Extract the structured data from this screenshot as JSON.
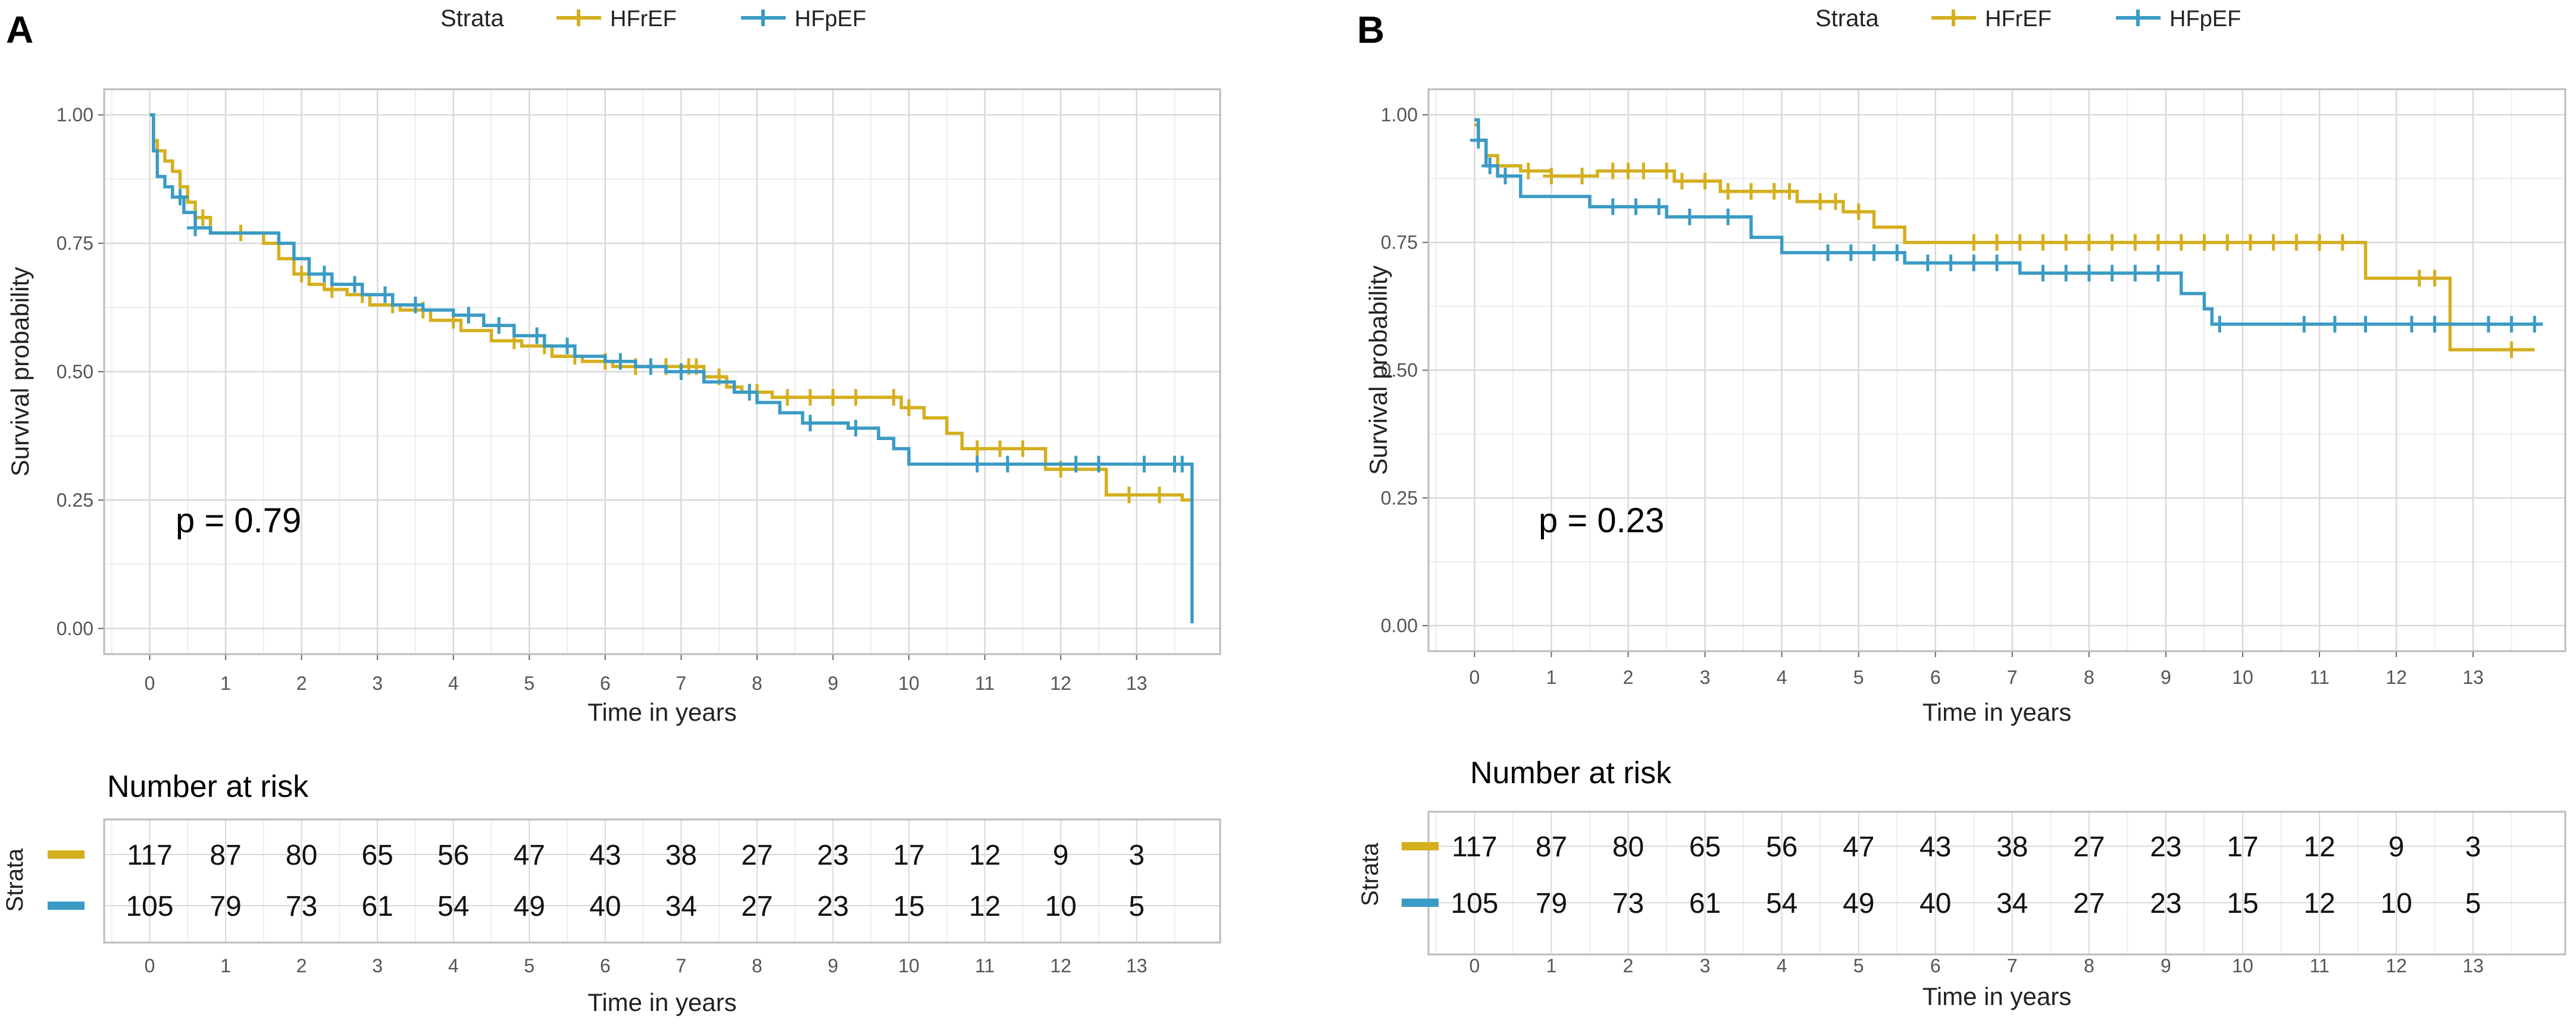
{
  "colors": {
    "hfref": "#D4AF1E",
    "hfpef": "#3A9BC5",
    "grid_major": "#D9D9D9",
    "grid_minor": "#EDEDED",
    "border": "#BBBBBB",
    "text": "#222222",
    "tick_text": "#555555"
  },
  "chart_data": [
    {
      "panel_label": "A",
      "type": "line",
      "subtype": "kaplan-meier",
      "legend_title": "Strata",
      "legend_position": "top",
      "xlabel": "Time in years",
      "ylabel": "Survival probability",
      "xlim": [
        -0.6,
        14.1
      ],
      "ylim": [
        -0.05,
        1.05
      ],
      "x_ticks": [
        0,
        1,
        2,
        3,
        4,
        5,
        6,
        7,
        8,
        9,
        10,
        11,
        12,
        13
      ],
      "y_ticks": [
        0,
        0.25,
        0.5,
        0.75,
        1
      ],
      "y_tick_labels": [
        "0.00",
        "0.25",
        "0.50",
        "0.75",
        "1.00"
      ],
      "pvalue": "p = 0.79",
      "series": [
        {
          "name": "HFrEF",
          "color": "#D4AF1E",
          "x": [
            0,
            0.05,
            0.1,
            0.2,
            0.3,
            0.4,
            0.5,
            0.6,
            0.8,
            1.5,
            1.7,
            1.9,
            2.1,
            2.3,
            2.6,
            2.9,
            3.3,
            3.7,
            4.1,
            4.5,
            4.9,
            5.3,
            5.7,
            6.1,
            6.5,
            6.9,
            7.3,
            7.6,
            7.8,
            8.2,
            9.4,
            9.9,
            10.2,
            10.5,
            10.7,
            11.8,
            12.6,
            13.6,
            13.75
          ],
          "y": [
            1.0,
            0.95,
            0.93,
            0.91,
            0.89,
            0.86,
            0.83,
            0.8,
            0.77,
            0.75,
            0.72,
            0.69,
            0.67,
            0.66,
            0.65,
            0.63,
            0.62,
            0.6,
            0.58,
            0.56,
            0.55,
            0.53,
            0.52,
            0.51,
            0.51,
            0.51,
            0.49,
            0.47,
            0.46,
            0.45,
            0.45,
            0.43,
            0.41,
            0.38,
            0.35,
            0.31,
            0.26,
            0.25,
            0.25
          ],
          "censor_x": [
            0.7,
            1.2,
            2.0,
            2.4,
            2.8,
            3.2,
            3.6,
            4.0,
            4.8,
            5.2,
            5.6,
            6.0,
            6.4,
            6.8,
            7.1,
            7.2,
            7.5,
            8.0,
            8.4,
            8.7,
            9.0,
            9.3,
            9.8,
            10.0,
            10.9,
            11.2,
            11.5,
            12.0,
            12.9,
            13.3
          ],
          "risk_table": [
            117,
            87,
            80,
            65,
            56,
            47,
            43,
            38,
            27,
            23,
            17,
            12,
            9,
            3
          ]
        },
        {
          "name": "HFpEF",
          "color": "#3A9BC5",
          "x": [
            0,
            0.05,
            0.1,
            0.2,
            0.3,
            0.45,
            0.6,
            0.8,
            1.7,
            1.9,
            2.1,
            2.4,
            2.8,
            3.2,
            3.6,
            4.0,
            4.4,
            4.8,
            5.2,
            5.6,
            6.0,
            6.4,
            6.8,
            7.3,
            7.7,
            8.0,
            8.3,
            8.6,
            9.2,
            9.6,
            9.8,
            10.0,
            10.5,
            11.7,
            12.0,
            13.0,
            13.73,
            13.73
          ],
          "y": [
            1.0,
            0.93,
            0.88,
            0.86,
            0.84,
            0.81,
            0.78,
            0.77,
            0.75,
            0.72,
            0.69,
            0.67,
            0.65,
            0.63,
            0.62,
            0.61,
            0.59,
            0.57,
            0.55,
            0.53,
            0.52,
            0.51,
            0.5,
            0.48,
            0.46,
            0.44,
            0.42,
            0.4,
            0.39,
            0.37,
            0.35,
            0.32,
            0.32,
            0.32,
            0.32,
            0.32,
            0.32,
            0.01
          ],
          "censor_x": [
            0.4,
            0.6,
            2.3,
            2.7,
            3.1,
            3.5,
            4.2,
            4.6,
            5.1,
            5.5,
            6.2,
            6.6,
            7.0,
            7.9,
            8.7,
            9.3,
            10.9,
            11.3,
            12.2,
            12.5,
            13.1,
            13.5,
            13.6
          ],
          "risk_table": [
            105,
            79,
            73,
            61,
            54,
            49,
            40,
            34,
            27,
            23,
            15,
            12,
            10,
            5
          ]
        }
      ],
      "risk_table_title": "Number at risk",
      "risk_table_ylabel": "Strata",
      "risk_table_xlabel": "Time in years"
    },
    {
      "panel_label": "B",
      "type": "line",
      "subtype": "kaplan-meier",
      "legend_title": "Strata",
      "legend_position": "top",
      "xlabel": "Time in years",
      "ylabel": "Survival probability",
      "xlim": [
        -0.6,
        14.2
      ],
      "ylim": [
        -0.05,
        1.05
      ],
      "x_ticks": [
        0,
        1,
        2,
        3,
        4,
        5,
        6,
        7,
        8,
        9,
        10,
        11,
        12,
        13
      ],
      "y_ticks": [
        0,
        0.25,
        0.5,
        0.75,
        1
      ],
      "y_tick_labels": [
        "0.00",
        "0.25",
        "0.50",
        "0.75",
        "1.00"
      ],
      "pvalue": "p = 0.23",
      "series": [
        {
          "name": "HFrEF",
          "color": "#D4AF1E",
          "x": [
            0,
            0.05,
            0.15,
            0.3,
            0.6,
            1.0,
            1.6,
            2.6,
            3.2,
            4.2,
            4.8,
            5.2,
            5.6,
            6.0,
            7.0,
            8.0,
            9.0,
            10.0,
            11.0,
            11.6,
            12.7,
            13.8
          ],
          "y": [
            0.98,
            0.95,
            0.92,
            0.9,
            0.89,
            0.88,
            0.89,
            0.87,
            0.85,
            0.83,
            0.81,
            0.78,
            0.75,
            0.75,
            0.75,
            0.75,
            0.75,
            0.75,
            0.75,
            0.68,
            0.54,
            0.54
          ],
          "censor_x": [
            0.3,
            0.7,
            1.0,
            1.4,
            1.8,
            2.0,
            2.2,
            2.5,
            2.7,
            3.0,
            3.3,
            3.6,
            3.9,
            4.1,
            4.5,
            4.7,
            5.0,
            6.5,
            6.8,
            7.1,
            7.4,
            7.7,
            8.0,
            8.3,
            8.6,
            8.9,
            9.2,
            9.5,
            9.8,
            10.1,
            10.4,
            10.7,
            11.0,
            11.3,
            12.3,
            12.5,
            13.5
          ],
          "risk_table": [
            117,
            87,
            80,
            65,
            56,
            47,
            43,
            38,
            27,
            23,
            17,
            12,
            9,
            3
          ]
        },
        {
          "name": "HFpEF",
          "color": "#3A9BC5",
          "x": [
            0,
            0.05,
            0.15,
            0.3,
            0.6,
            1.5,
            2.5,
            3.6,
            4.0,
            5.6,
            7.1,
            9.2,
            9.5,
            9.6,
            10.0,
            12.7,
            13.9
          ],
          "y": [
            0.99,
            0.95,
            0.9,
            0.88,
            0.84,
            0.82,
            0.8,
            0.76,
            0.73,
            0.71,
            0.69,
            0.65,
            0.62,
            0.59,
            0.59,
            0.59,
            0.59
          ],
          "censor_x": [
            0.05,
            0.2,
            0.4,
            1.8,
            2.1,
            2.4,
            2.8,
            3.3,
            4.6,
            4.9,
            5.2,
            5.5,
            5.9,
            6.2,
            6.5,
            6.8,
            7.4,
            7.7,
            8.0,
            8.3,
            8.6,
            8.9,
            9.7,
            10.8,
            11.2,
            11.6,
            12.2,
            12.5,
            13.2,
            13.5,
            13.8
          ],
          "risk_table": [
            105,
            79,
            73,
            61,
            54,
            49,
            40,
            34,
            27,
            23,
            15,
            12,
            10,
            5
          ]
        }
      ],
      "risk_table_title": "Number at risk",
      "risk_table_ylabel": "Strata",
      "risk_table_xlabel": "Time in years"
    }
  ]
}
